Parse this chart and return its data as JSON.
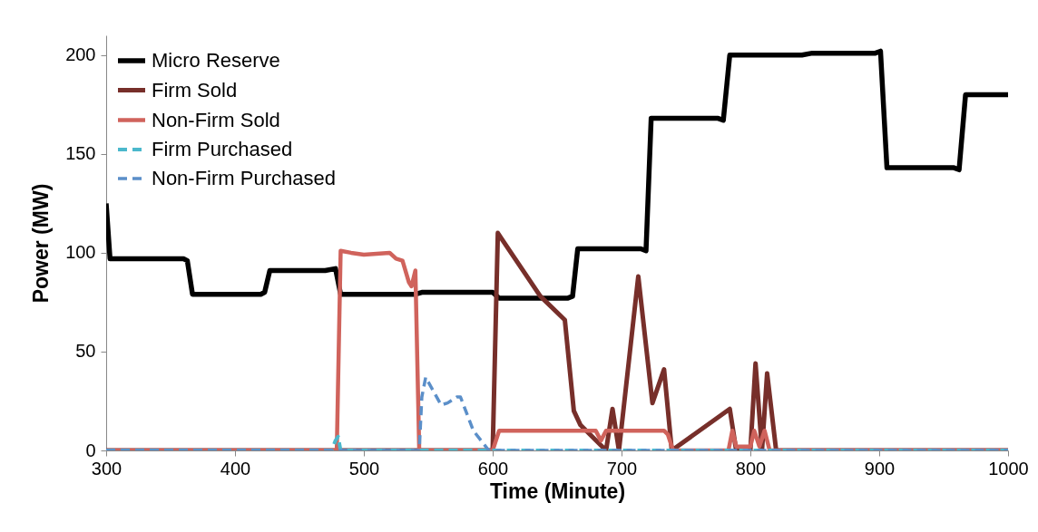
{
  "chart_data": {
    "type": "line",
    "xlabel": "Time (Minute)",
    "ylabel": "Power (MW)",
    "xlim": [
      300,
      1000
    ],
    "xticks": [
      300,
      400,
      500,
      600,
      700,
      800,
      900,
      1000
    ],
    "ylim": [
      0,
      210
    ],
    "yticks": [
      0,
      50,
      100,
      150,
      200
    ],
    "grid": false,
    "legend": "top left",
    "marker": "none",
    "series": [
      {
        "name": "Micro Reserve",
        "color": "#000000",
        "line_style": "solid",
        "x": [
          300,
          303,
          360,
          363,
          367,
          420,
          423,
          427,
          470,
          478,
          482,
          540,
          545,
          600,
          605,
          658,
          662,
          666,
          715,
          719,
          723,
          775,
          779,
          784,
          840,
          848,
          897,
          901,
          906,
          958,
          962,
          967,
          970,
          1000
        ],
        "values": [
          125,
          97,
          97,
          96,
          79,
          79,
          80,
          91,
          91,
          92,
          79,
          79,
          80,
          80,
          77,
          77,
          78,
          102,
          102,
          101,
          168,
          168,
          167,
          200,
          200,
          201,
          201,
          202,
          143,
          143,
          142,
          180,
          180,
          180
        ]
      },
      {
        "name": "Firm Sold",
        "color": "#772f2a",
        "line_style": "solid",
        "x": [
          300,
          600,
          604,
          607,
          637,
          656,
          663,
          668,
          688,
          693,
          698,
          713,
          724,
          733,
          739,
          784,
          789,
          800,
          804,
          809,
          813,
          820,
          1000
        ],
        "values": [
          0,
          0,
          110,
          107,
          78,
          66,
          20,
          13,
          0,
          21,
          0,
          88,
          24,
          41,
          0,
          21,
          0,
          0,
          44,
          0,
          39,
          0,
          0
        ]
      },
      {
        "name": "Non-Firm Sold",
        "color": "#d0635c",
        "line_style": "solid",
        "x": [
          300,
          479,
          482,
          490,
          500,
          520,
          525,
          530,
          535,
          537,
          540,
          543,
          600,
          605,
          680,
          684,
          688,
          733,
          736,
          740,
          783,
          786,
          789,
          800,
          803,
          807,
          811,
          815,
          1000
        ],
        "values": [
          0,
          0,
          101,
          100,
          99,
          100,
          97,
          96,
          85,
          83,
          91,
          0,
          0,
          10,
          10,
          5,
          10,
          10,
          8,
          0,
          0,
          10,
          2,
          2,
          10,
          2,
          10,
          0,
          0
        ]
      },
      {
        "name": "Firm Purchased",
        "color": "#4bb8cc",
        "line_style": "dashed",
        "x": [
          300,
          475,
          478,
          480,
          482,
          1000
        ],
        "values": [
          0,
          0,
          5,
          7,
          0,
          0
        ]
      },
      {
        "name": "Non-Firm Purchased",
        "color": "#5b8fc9",
        "line_style": "dashed",
        "x": [
          300,
          543,
          545,
          548,
          560,
          565,
          572,
          575,
          585,
          597,
          1000
        ],
        "values": [
          0,
          0,
          27,
          37,
          23,
          24,
          27,
          27,
          10,
          0,
          0
        ]
      }
    ]
  }
}
